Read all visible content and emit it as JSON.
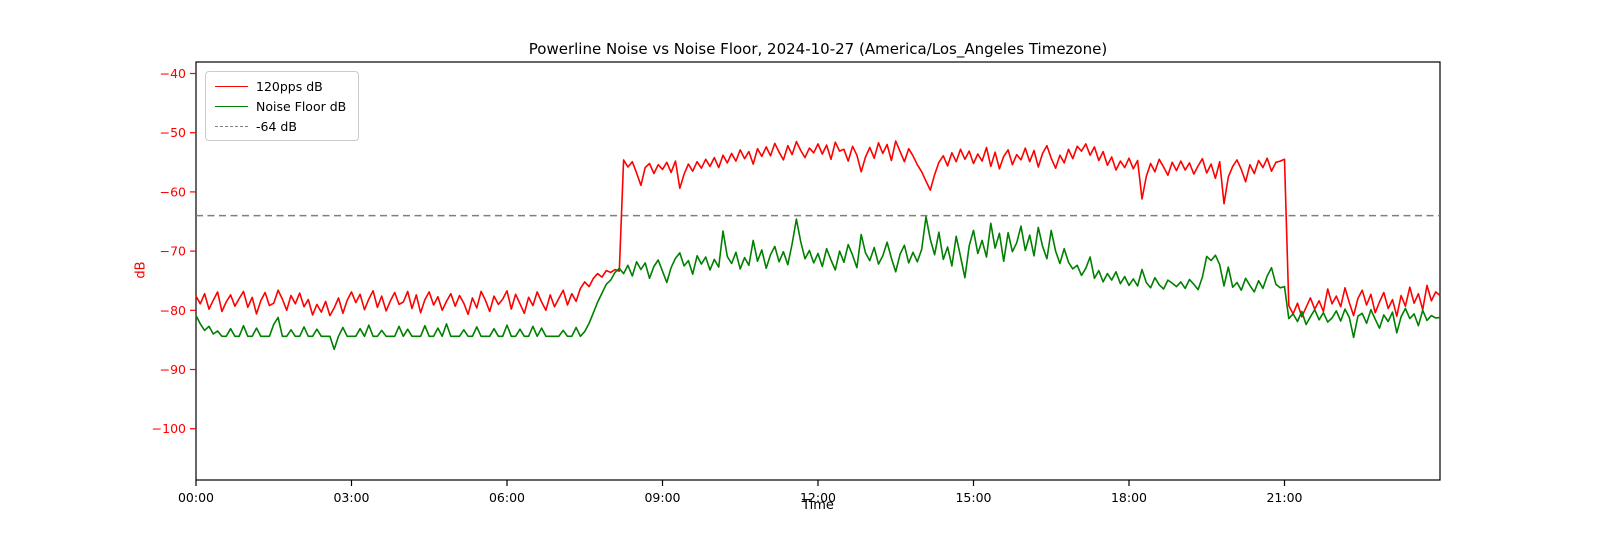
{
  "figure": {
    "title": "Powerline Noise vs Noise Floor, 2024-10-27 (America/Los_Angeles Timezone)",
    "background": "#ffffff"
  },
  "legend": {
    "items": [
      {
        "label": "120pps dB",
        "color": "#ff0000",
        "style": "solid"
      },
      {
        "label": "Noise Floor dB",
        "color": "#008000",
        "style": "solid"
      },
      {
        "label": "-64 dB",
        "color": "#7f7f7f",
        "style": "dashed"
      }
    ]
  },
  "chart_data": {
    "type": "line",
    "title": "Powerline Noise vs Noise Floor, 2024-10-27 (America/Los_Angeles Timezone)",
    "xlabel": "Time",
    "ylabel": "dB",
    "grid": false,
    "legend_position": "upper left",
    "xlim_hours": [
      0,
      24
    ],
    "ylim": [
      -108.7,
      -38.1
    ],
    "x_ticks": [
      {
        "hour": 0,
        "label": "00:00"
      },
      {
        "hour": 3,
        "label": "03:00"
      },
      {
        "hour": 6,
        "label": "06:00"
      },
      {
        "hour": 9,
        "label": "09:00"
      },
      {
        "hour": 12,
        "label": "12:00"
      },
      {
        "hour": 15,
        "label": "15:00"
      },
      {
        "hour": 18,
        "label": "18:00"
      },
      {
        "hour": 21,
        "label": "21:00"
      }
    ],
    "y_ticks": [
      {
        "value": -40,
        "label": "−40"
      },
      {
        "value": -50,
        "label": "−50"
      },
      {
        "value": -60,
        "label": "−60"
      },
      {
        "value": -70,
        "label": "−70"
      },
      {
        "value": -80,
        "label": "−80"
      },
      {
        "value": -90,
        "label": "−90"
      },
      {
        "value": -100,
        "label": "−100"
      }
    ],
    "y_tick_color": "#ff0000",
    "x_tick_color": "#000000",
    "threshold": {
      "value": -64,
      "label": "-64 dB",
      "color": "#7f7f7f",
      "style": "dashed"
    },
    "x_start_hour": 0,
    "x_step_hours": 0.0833333,
    "series": [
      {
        "name": "120pps dB",
        "color": "#ff0000",
        "values": [
          -77.6,
          -78.9,
          -77.2,
          -79.8,
          -78.3,
          -76.9,
          -80.2,
          -78.6,
          -77.4,
          -79.3,
          -78.0,
          -76.8,
          -79.5,
          -77.8,
          -80.6,
          -78.4,
          -77.0,
          -79.2,
          -78.8,
          -76.6,
          -78.1,
          -80.0,
          -77.5,
          -78.9,
          -77.1,
          -79.4,
          -78.2,
          -80.8,
          -79.0,
          -80.3,
          -78.5,
          -80.9,
          -79.6,
          -77.9,
          -80.5,
          -78.3,
          -76.9,
          -78.7,
          -77.3,
          -79.9,
          -78.1,
          -76.7,
          -79.5,
          -77.6,
          -80.1,
          -78.4,
          -77.0,
          -79.0,
          -78.6,
          -76.8,
          -79.7,
          -77.4,
          -80.4,
          -78.2,
          -76.9,
          -79.1,
          -77.7,
          -80.0,
          -78.5,
          -77.2,
          -79.3,
          -77.5,
          -78.8,
          -80.7,
          -77.9,
          -79.6,
          -76.8,
          -78.3,
          -80.2,
          -77.6,
          -79.0,
          -78.1,
          -76.7,
          -79.8,
          -77.3,
          -78.9,
          -80.5,
          -77.8,
          -79.2,
          -76.9,
          -78.6,
          -80.0,
          -77.4,
          -79.4,
          -78.0,
          -76.6,
          -79.1,
          -77.2,
          -78.5,
          -76.3,
          -75.2,
          -76.0,
          -74.6,
          -73.8,
          -74.4,
          -73.3,
          -73.6,
          -73.1,
          -73.4,
          -54.6,
          -55.8,
          -54.9,
          -56.8,
          -58.9,
          -55.9,
          -55.2,
          -56.9,
          -55.4,
          -56.2,
          -55.0,
          -56.7,
          -54.8,
          -59.4,
          -57.0,
          -55.3,
          -56.5,
          -54.9,
          -56.0,
          -54.5,
          -55.7,
          -54.2,
          -55.9,
          -53.8,
          -55.1,
          -53.5,
          -54.8,
          -52.9,
          -54.4,
          -53.2,
          -55.3,
          -52.7,
          -54.0,
          -52.4,
          -53.9,
          -51.8,
          -53.3,
          -54.6,
          -52.2,
          -53.7,
          -51.5,
          -53.0,
          -54.2,
          -52.6,
          -53.4,
          -51.9,
          -53.6,
          -52.1,
          -54.5,
          -51.6,
          -53.1,
          -52.8,
          -54.8,
          -52.3,
          -53.8,
          -56.6,
          -54.1,
          -52.5,
          -54.3,
          -51.7,
          -53.5,
          -52.0,
          -54.7,
          -51.4,
          -53.2,
          -54.9,
          -52.7,
          -53.9,
          -55.4,
          -56.6,
          -58.2,
          -59.7,
          -57.1,
          -55.0,
          -53.9,
          -55.6,
          -53.4,
          -54.9,
          -52.8,
          -54.5,
          -53.1,
          -55.2,
          -53.6,
          -54.8,
          -52.5,
          -55.7,
          -53.3,
          -56.1,
          -54.0,
          -52.9,
          -55.4,
          -53.7,
          -54.6,
          -52.6,
          -54.9,
          -53.0,
          -55.8,
          -53.5,
          -52.2,
          -54.3,
          -56.0,
          -53.8,
          -55.1,
          -52.8,
          -54.4,
          -52.3,
          -53.1,
          -51.9,
          -53.8,
          -52.4,
          -54.7,
          -53.2,
          -55.5,
          -54.1,
          -56.3,
          -54.8,
          -55.9,
          -54.3,
          -56.1,
          -54.7,
          -61.2,
          -57.4,
          -55.2,
          -56.6,
          -54.5,
          -55.8,
          -57.2,
          -55.0,
          -56.4,
          -54.8,
          -56.3,
          -55.1,
          -57.0,
          -55.6,
          -54.4,
          -56.8,
          -55.3,
          -57.7,
          -54.9,
          -62.0,
          -57.5,
          -55.7,
          -54.6,
          -56.2,
          -58.3,
          -55.4,
          -56.9,
          -54.7,
          -55.9,
          -54.3,
          -56.5,
          -55.0,
          -54.8,
          -54.5,
          -79.2,
          -80.6,
          -78.8,
          -81.1,
          -79.5,
          -77.9,
          -79.8,
          -78.4,
          -80.2,
          -76.4,
          -78.9,
          -77.6,
          -79.4,
          -76.2,
          -78.7,
          -80.9,
          -78.0,
          -76.6,
          -79.1,
          -77.3,
          -80.4,
          -78.6,
          -77.0,
          -79.7,
          -78.2,
          -81.0,
          -77.5,
          -79.3,
          -76.1,
          -78.8,
          -77.2,
          -79.9,
          -75.8,
          -78.4,
          -76.9,
          -77.5
        ]
      },
      {
        "name": "Noise Floor dB",
        "color": "#008000",
        "values": [
          -80.9,
          -82.3,
          -83.4,
          -82.7,
          -84.0,
          -83.5,
          -84.4,
          -84.4,
          -83.1,
          -84.4,
          -84.4,
          -82.6,
          -84.4,
          -84.4,
          -83.0,
          -84.4,
          -84.4,
          -84.4,
          -82.4,
          -81.2,
          -84.4,
          -84.4,
          -83.3,
          -84.4,
          -84.4,
          -82.8,
          -84.4,
          -84.4,
          -83.2,
          -84.4,
          -84.4,
          -84.4,
          -86.6,
          -84.4,
          -82.9,
          -84.4,
          -84.4,
          -84.4,
          -83.1,
          -84.4,
          -82.5,
          -84.4,
          -84.4,
          -83.4,
          -84.4,
          -84.4,
          -84.4,
          -82.7,
          -84.4,
          -83.2,
          -84.4,
          -84.4,
          -84.4,
          -82.6,
          -84.4,
          -84.4,
          -83.0,
          -84.4,
          -82.3,
          -84.4,
          -84.4,
          -84.4,
          -83.3,
          -84.4,
          -84.4,
          -82.8,
          -84.4,
          -84.4,
          -84.4,
          -83.1,
          -84.4,
          -84.4,
          -82.5,
          -84.4,
          -84.4,
          -83.2,
          -84.4,
          -84.4,
          -82.7,
          -84.4,
          -83.0,
          -84.4,
          -84.4,
          -84.4,
          -84.4,
          -83.4,
          -84.4,
          -84.4,
          -82.9,
          -84.4,
          -83.6,
          -82.2,
          -80.4,
          -78.6,
          -77.1,
          -75.6,
          -74.9,
          -73.6,
          -72.9,
          -73.8,
          -72.4,
          -74.2,
          -71.8,
          -73.1,
          -72.0,
          -74.6,
          -72.6,
          -71.5,
          -73.4,
          -75.3,
          -72.8,
          -71.2,
          -70.3,
          -72.5,
          -71.6,
          -73.9,
          -70.8,
          -72.2,
          -71.0,
          -73.2,
          -71.4,
          -72.7,
          -66.6,
          -70.9,
          -72.1,
          -70.2,
          -73.0,
          -71.1,
          -72.4,
          -68.2,
          -71.7,
          -69.8,
          -72.9,
          -70.6,
          -69.2,
          -71.8,
          -70.1,
          -72.3,
          -68.8,
          -64.6,
          -68.4,
          -71.3,
          -69.9,
          -72.0,
          -70.4,
          -72.6,
          -69.6,
          -71.5,
          -73.2,
          -70.0,
          -71.9,
          -68.9,
          -70.7,
          -72.8,
          -67.2,
          -70.3,
          -71.6,
          -69.4,
          -72.2,
          -70.8,
          -68.5,
          -71.2,
          -73.5,
          -70.5,
          -69.0,
          -72.0,
          -70.2,
          -71.8,
          -69.7,
          -64.2,
          -68.0,
          -70.6,
          -66.8,
          -71.4,
          -69.3,
          -72.5,
          -67.5,
          -70.9,
          -74.5,
          -69.1,
          -66.5,
          -70.4,
          -68.2,
          -71.0,
          -65.3,
          -69.5,
          -67.0,
          -71.7,
          -66.9,
          -70.1,
          -68.6,
          -65.8,
          -69.9,
          -67.3,
          -70.8,
          -66.0,
          -69.2,
          -71.3,
          -66.5,
          -70.0,
          -72.1,
          -69.6,
          -71.9,
          -73.0,
          -72.4,
          -74.1,
          -72.9,
          -71.0,
          -74.6,
          -73.3,
          -75.2,
          -73.8,
          -74.9,
          -73.5,
          -75.5,
          -74.3,
          -75.8,
          -74.7,
          -75.9,
          -73.1,
          -75.3,
          -76.2,
          -74.5,
          -75.7,
          -76.4,
          -74.9,
          -75.4,
          -76.0,
          -75.2,
          -76.3,
          -74.8,
          -75.6,
          -76.5,
          -74.4,
          -70.9,
          -71.6,
          -70.7,
          -72.3,
          -75.9,
          -72.7,
          -76.1,
          -75.3,
          -76.6,
          -74.6,
          -75.8,
          -76.9,
          -75.0,
          -76.3,
          -74.2,
          -72.8,
          -75.6,
          -76.2,
          -76.0,
          -81.4,
          -80.6,
          -81.9,
          -80.2,
          -82.4,
          -81.1,
          -79.9,
          -81.6,
          -80.4,
          -82.0,
          -81.3,
          -80.1,
          -81.8,
          -79.8,
          -81.2,
          -84.6,
          -81.0,
          -80.5,
          -82.2,
          -79.9,
          -81.5,
          -83.0,
          -80.8,
          -81.9,
          -80.3,
          -83.8,
          -81.1,
          -79.7,
          -81.4,
          -80.6,
          -82.6,
          -80.0,
          -81.7,
          -80.9,
          -81.3,
          -81.2
        ]
      }
    ]
  }
}
